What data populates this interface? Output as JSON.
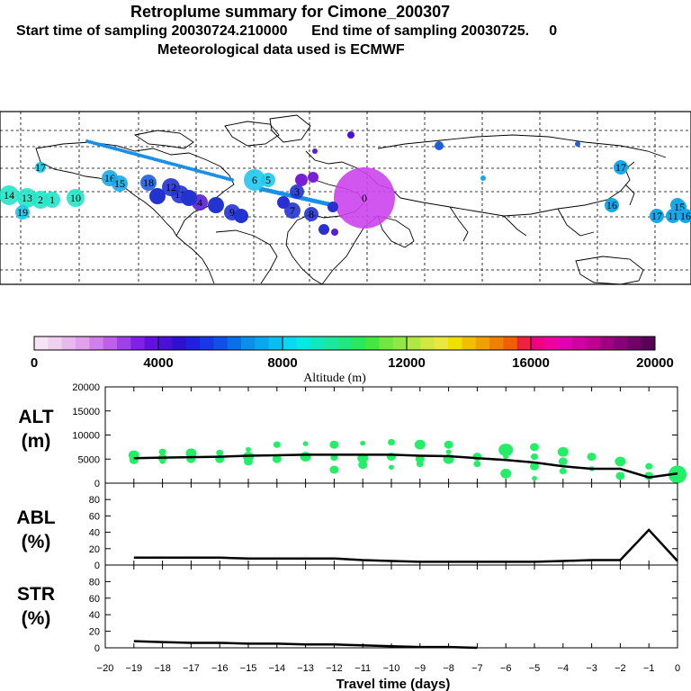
{
  "header": {
    "title": "Retroplume summary for Cimone_200307",
    "start_label": "Start time of sampling 20030724.210000",
    "end_label": "End time of sampling 20030725.     0",
    "met_label": "Meteorological data used is ECMWF"
  },
  "map": {
    "markers": [
      {
        "id": "14",
        "color": "#22e6c8"
      },
      {
        "id": "13",
        "color": "#22e6c8"
      },
      {
        "id": "2",
        "color": "#22e6c8"
      },
      {
        "id": "1",
        "color": "#22e6c8"
      },
      {
        "id": "10",
        "color": "#22e6c8"
      },
      {
        "id": "19",
        "color": "#11c8e8"
      },
      {
        "id": "17",
        "color": "#11c8e8"
      },
      {
        "id": "18",
        "color": "#1f5de0"
      },
      {
        "id": "16",
        "color": "#18a8e8"
      },
      {
        "id": "15",
        "color": "#18a8e8"
      },
      {
        "id": "6",
        "color": "#20c8ee"
      },
      {
        "id": "5",
        "color": "#20c8ee"
      },
      {
        "id": "7",
        "color": "#2233d0"
      },
      {
        "id": "8",
        "color": "#2233d0"
      },
      {
        "id": "9",
        "color": "#2233d0"
      },
      {
        "id": "11",
        "color": "#2233d0"
      },
      {
        "id": "12",
        "color": "#2233d0"
      },
      {
        "id": "4",
        "color": "#5a1fd0"
      },
      {
        "id": "3",
        "color": "#2233d0"
      },
      {
        "id": "0",
        "color": "#cc44ee"
      }
    ],
    "east_markers": [
      "16",
      "17",
      "18",
      "17",
      "11",
      "15",
      "16"
    ]
  },
  "colorbar": {
    "ticks": [
      "0",
      "4000",
      "8000",
      "12000",
      "16000",
      "20000"
    ],
    "label": "Altitude (m)",
    "colors": [
      "#f6e4f6",
      "#f0d0f0",
      "#e8b8ee",
      "#e0a0ec",
      "#d080ea",
      "#c060ea",
      "#a040ea",
      "#8020e8",
      "#6010e0",
      "#4a10d8",
      "#3010d0",
      "#2020e0",
      "#1838e8",
      "#1050e8",
      "#0870e8",
      "#0890ec",
      "#08a8f0",
      "#08c0f0",
      "#08d8f0",
      "#08e8e0",
      "#10e8c0",
      "#18e8a0",
      "#20e880",
      "#28e860",
      "#40e840",
      "#70e840",
      "#90e840",
      "#b0e840",
      "#d0e840",
      "#e8e840",
      "#f0e000",
      "#f0c000",
      "#f0a000",
      "#f08000",
      "#f06000",
      "#f02040",
      "#f00080",
      "#f000a0",
      "#e000b0",
      "#d000a0",
      "#c00090",
      "#a00080",
      "#880078",
      "#700068",
      "#580058"
    ]
  },
  "chart_data": [
    {
      "type": "line",
      "panel": "ALT",
      "panel_label": [
        "ALT",
        "(m)"
      ],
      "title": "",
      "xlabel": "Travel time (days)",
      "ylabel": "ALT (m)",
      "ylim": [
        0,
        20000
      ],
      "yticks": [
        "0",
        "5000",
        "10000",
        "15000",
        "20000"
      ],
      "x": [
        -19,
        -18,
        -17,
        -16,
        -15,
        -14,
        -13,
        -12,
        -11,
        -10,
        -9,
        -8,
        -7,
        -6,
        -5,
        -4,
        -3,
        -2,
        -1,
        0
      ],
      "values": [
        5200,
        5300,
        5400,
        5500,
        5700,
        5800,
        5900,
        5900,
        5900,
        5900,
        5700,
        5600,
        5200,
        4800,
        4300,
        3500,
        3000,
        3000,
        1200,
        2000
      ],
      "scatter": [
        {
          "x": -19,
          "y": 5800
        },
        {
          "x": -19,
          "y": 4800
        },
        {
          "x": -18,
          "y": 6500
        },
        {
          "x": -18,
          "y": 5200
        },
        {
          "x": -18,
          "y": 4500
        },
        {
          "x": -17,
          "y": 6200
        },
        {
          "x": -17,
          "y": 5000
        },
        {
          "x": -16,
          "y": 6300
        },
        {
          "x": -16,
          "y": 5000
        },
        {
          "x": -15,
          "y": 7000
        },
        {
          "x": -15,
          "y": 5500
        },
        {
          "x": -15,
          "y": 4500
        },
        {
          "x": -14,
          "y": 8000
        },
        {
          "x": -14,
          "y": 5000
        },
        {
          "x": -13,
          "y": 8200
        },
        {
          "x": -13,
          "y": 5500
        },
        {
          "x": -12,
          "y": 8000
        },
        {
          "x": -12,
          "y": 5300
        },
        {
          "x": -12,
          "y": 2800
        },
        {
          "x": -11,
          "y": 8300
        },
        {
          "x": -11,
          "y": 5200
        },
        {
          "x": -11,
          "y": 3800
        },
        {
          "x": -10,
          "y": 8500
        },
        {
          "x": -10,
          "y": 5500
        },
        {
          "x": -10,
          "y": 3300
        },
        {
          "x": -9,
          "y": 8000
        },
        {
          "x": -9,
          "y": 5000
        },
        {
          "x": -9,
          "y": 4000
        },
        {
          "x": -8,
          "y": 8000
        },
        {
          "x": -8,
          "y": 6500
        },
        {
          "x": -8,
          "y": 5000
        },
        {
          "x": -7,
          "y": 5500
        },
        {
          "x": -7,
          "y": 4000
        },
        {
          "x": -6,
          "y": 7000
        },
        {
          "x": -6,
          "y": 5500
        },
        {
          "x": -6,
          "y": 2000
        },
        {
          "x": -5,
          "y": 7500
        },
        {
          "x": -5,
          "y": 5500
        },
        {
          "x": -5,
          "y": 3500
        },
        {
          "x": -5,
          "y": 1000
        },
        {
          "x": -4,
          "y": 6500
        },
        {
          "x": -4,
          "y": 4500
        },
        {
          "x": -4,
          "y": 2500
        },
        {
          "x": -3,
          "y": 5500
        },
        {
          "x": -3,
          "y": 3000
        },
        {
          "x": -2,
          "y": 4500
        },
        {
          "x": -2,
          "y": 1500
        },
        {
          "x": -1,
          "y": 3500
        },
        {
          "x": -1,
          "y": 1500
        },
        {
          "x": 0,
          "y": 3000
        },
        {
          "x": 0,
          "y": 1500
        }
      ]
    },
    {
      "type": "line",
      "panel": "ABL",
      "panel_label": [
        "ABL",
        "(%)"
      ],
      "ylabel": "ABL (%)",
      "ylim": [
        0,
        100
      ],
      "yticks": [
        "0",
        "20",
        "40",
        "60",
        "80"
      ],
      "x": [
        -19,
        -18,
        -17,
        -16,
        -15,
        -14,
        -13,
        -12,
        -11,
        -10,
        -9,
        -8,
        -7,
        -6,
        -5,
        -4,
        -3,
        -2,
        -1,
        0
      ],
      "values": [
        9,
        9,
        9,
        9,
        8,
        8,
        8,
        8,
        6,
        5,
        4,
        4,
        4,
        4,
        4,
        5,
        6,
        6,
        43,
        5
      ]
    },
    {
      "type": "line",
      "panel": "STR",
      "panel_label": [
        "STR",
        "(%)"
      ],
      "ylabel": "STR (%)",
      "ylim": [
        0,
        100
      ],
      "yticks": [
        "0",
        "20",
        "40",
        "60",
        "80"
      ],
      "xticks": [
        "−20",
        "−19",
        "−18",
        "−17",
        "−16",
        "−15",
        "−14",
        "−13",
        "−12",
        "−11",
        "−10",
        "−9",
        "−8",
        "−7",
        "−6",
        "−5",
        "−4",
        "−3",
        "−2",
        "−1",
        "0"
      ],
      "x": [
        -19,
        -18,
        -17,
        -16,
        -15,
        -14,
        -13,
        -12,
        -11,
        -10,
        -9,
        -8,
        -7
      ],
      "values": [
        8,
        7,
        6,
        6,
        5,
        5,
        4,
        4,
        3,
        2,
        1,
        1,
        0
      ]
    }
  ]
}
